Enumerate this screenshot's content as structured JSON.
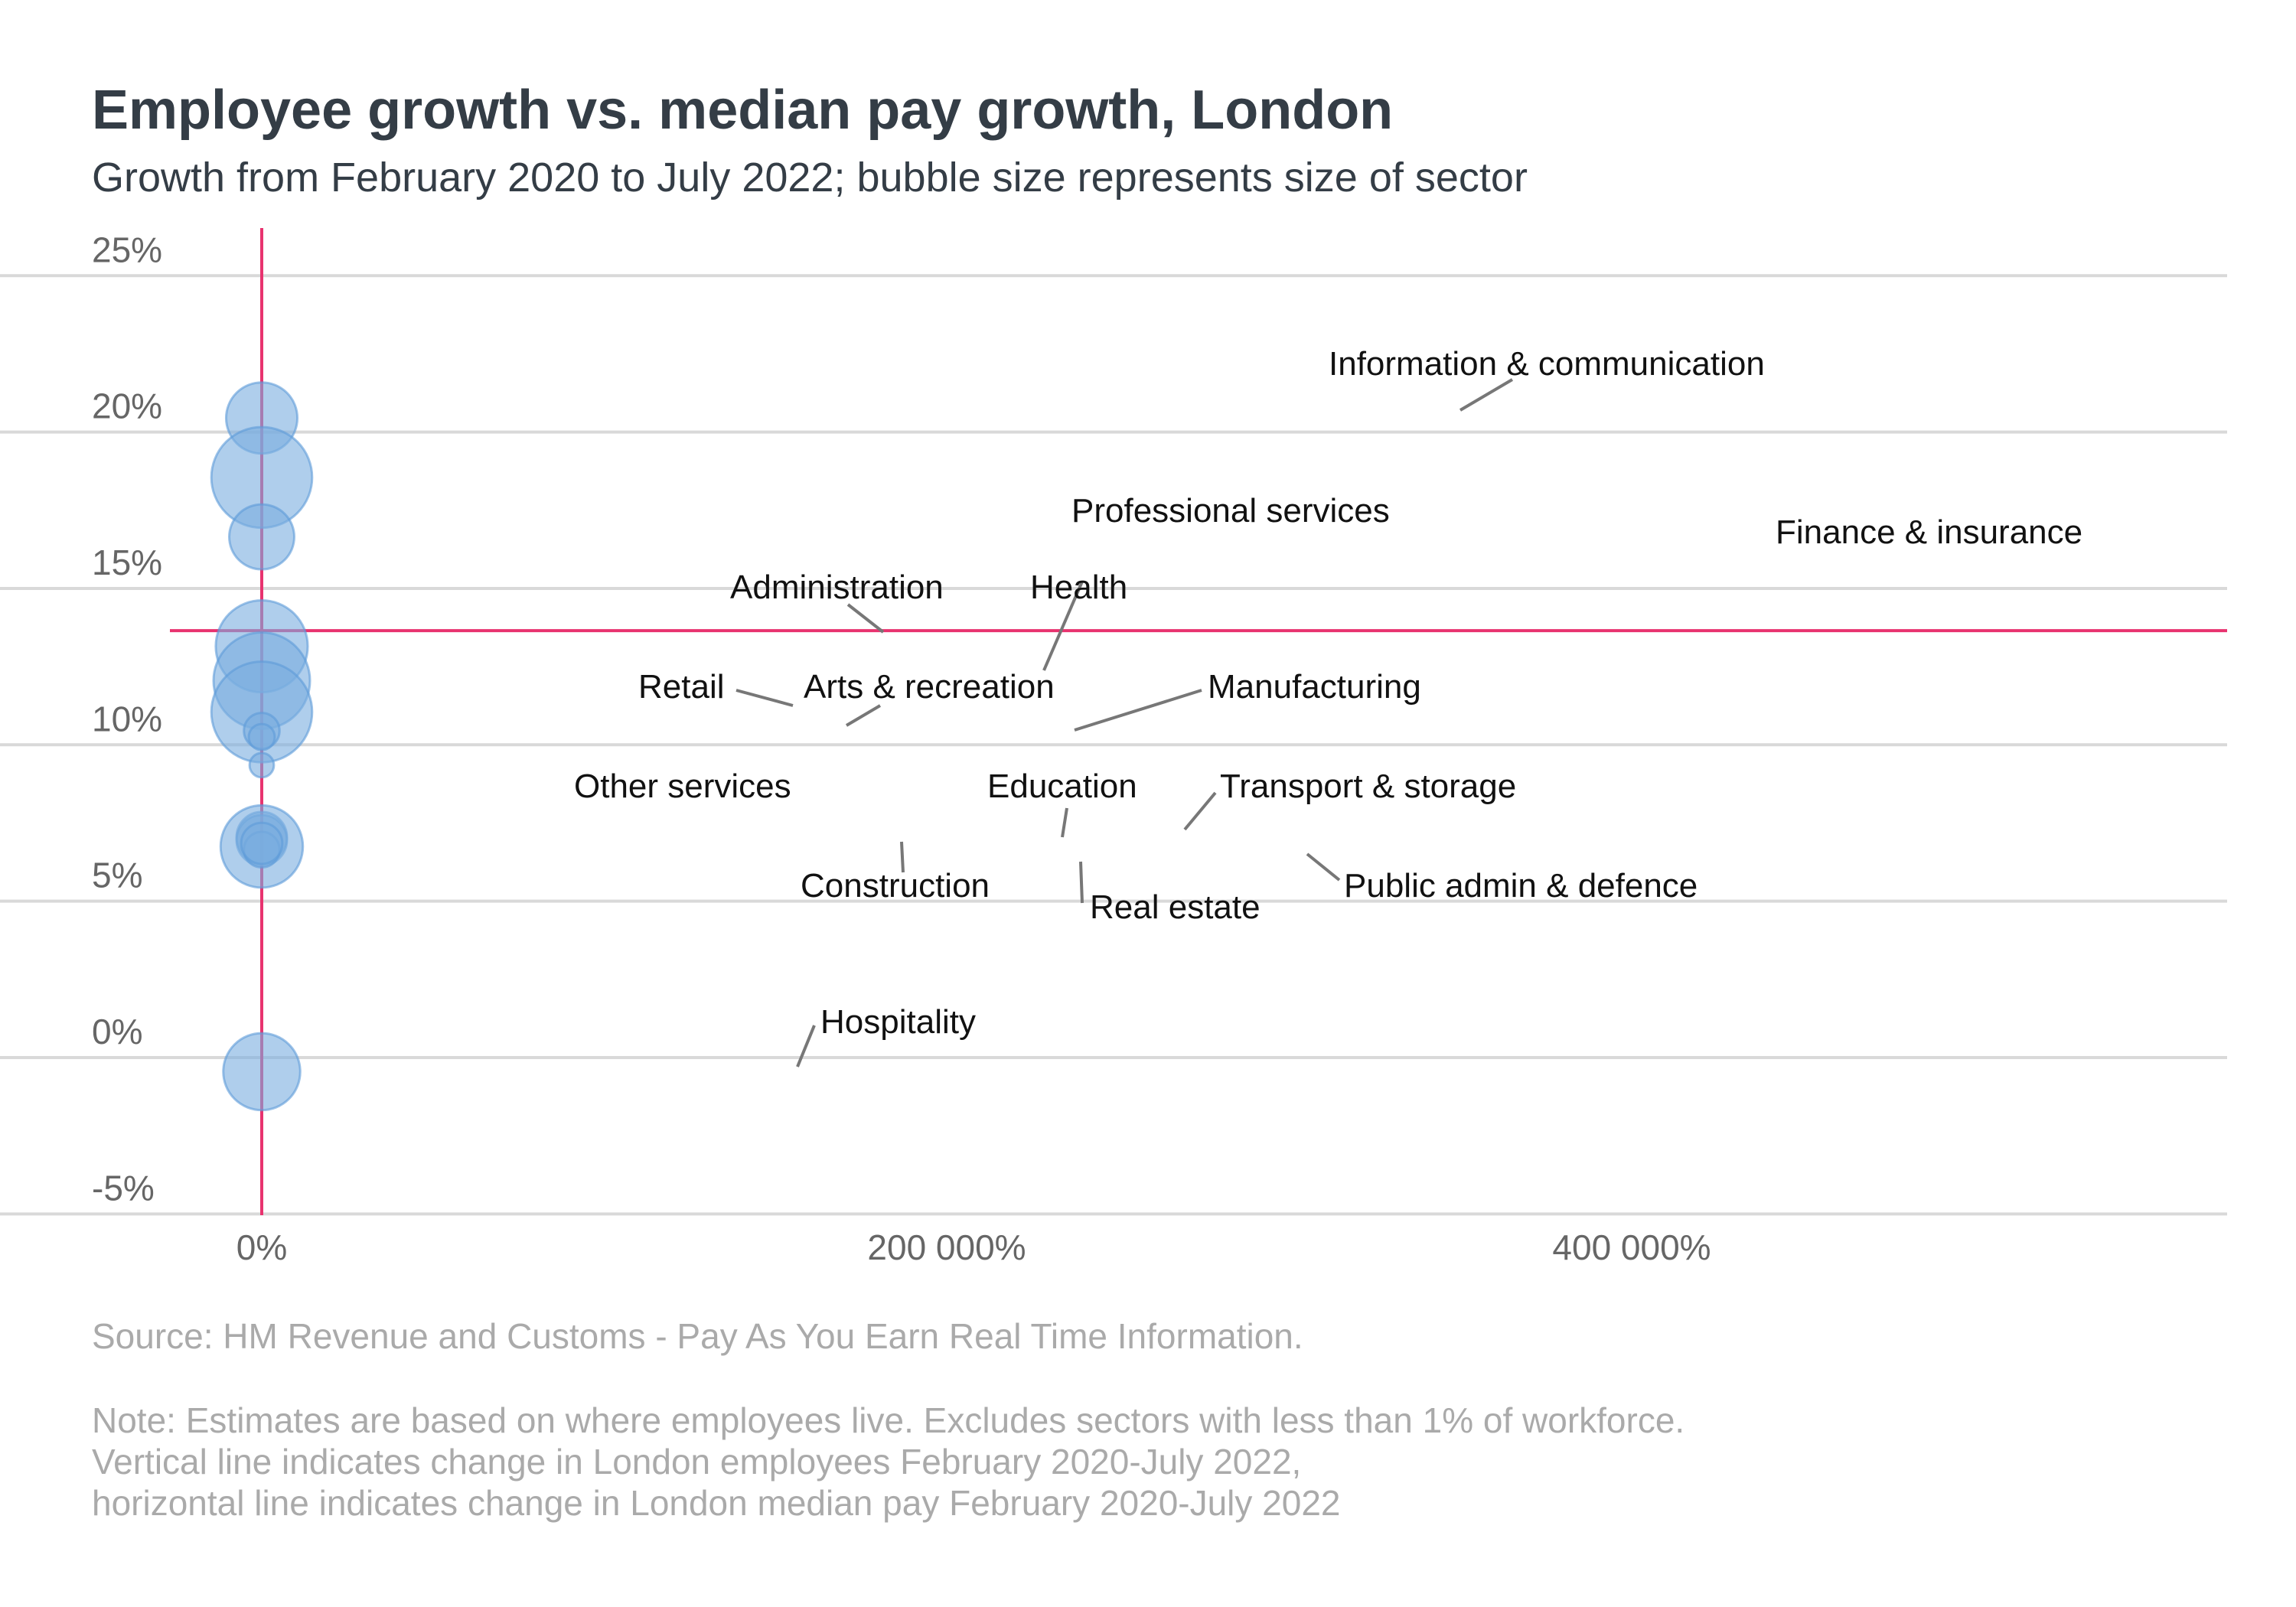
{
  "chart_data": {
    "type": "scatter",
    "title": "Employee growth vs. median pay growth, London",
    "subtitle": "Growth from February 2020 to July 2022; bubble size represents size of sector",
    "xlabel": "",
    "ylabel": "",
    "x_ticks": [
      {
        "value": 0,
        "label": "0%"
      },
      {
        "value": 200000,
        "label": "200 000%"
      },
      {
        "value": 400000,
        "label": "400 000%"
      }
    ],
    "y_ticks": [
      {
        "value": -5,
        "label": "-5%"
      },
      {
        "value": 0,
        "label": "0%"
      },
      {
        "value": 5,
        "label": "5%"
      },
      {
        "value": 10,
        "label": "10%"
      },
      {
        "value": 15,
        "label": "15%"
      },
      {
        "value": 20,
        "label": "20%"
      },
      {
        "value": 25,
        "label": "25%"
      }
    ],
    "xlim": [
      -50000,
      570000
    ],
    "ylim": [
      -5,
      25
    ],
    "grid": "horizontal",
    "vertical_reference": 0,
    "horizontal_reference": 13.6,
    "bubble_color": "#7aaee0",
    "reference_line_color": "#e8336f",
    "points": [
      {
        "label": "Information & communication",
        "x": 0,
        "y": 20.4,
        "size": 6
      },
      {
        "label": "Professional services",
        "x": 0,
        "y": 18.5,
        "size": 12
      },
      {
        "label": "Finance & insurance",
        "x": 0,
        "y": 16.6,
        "size": 5
      },
      {
        "label": "Administration",
        "x": 0,
        "y": 13.1,
        "size": 10
      },
      {
        "label": "Health",
        "x": 0,
        "y": 12.0,
        "size": 11
      },
      {
        "label": "Retail",
        "x": 0,
        "y": 11.0,
        "size": 12
      },
      {
        "label": "Arts & recreation",
        "x": 0,
        "y": 10.4,
        "size": 1.5
      },
      {
        "label": "Manufacturing",
        "x": 0,
        "y": 10.2,
        "size": 0.8
      },
      {
        "label": "Other services",
        "x": 0,
        "y": 9.3,
        "size": 0.7
      },
      {
        "label": "Education",
        "x": 0,
        "y": 7.0,
        "size": 3
      },
      {
        "label": "Transport & storage",
        "x": 0,
        "y": 6.9,
        "size": 3
      },
      {
        "label": "Construction",
        "x": 0,
        "y": 6.7,
        "size": 8
      },
      {
        "label": "Real estate",
        "x": 0,
        "y": 6.6,
        "size": 1.5
      },
      {
        "label": "Public admin & defence",
        "x": 0,
        "y": 6.8,
        "size": 2
      },
      {
        "label": "Hospitality",
        "x": 0,
        "y": -0.5,
        "size": 7
      }
    ]
  },
  "annotations": [
    {
      "text": "Source: HM Revenue and Customs - Pay As You Earn Real Time Information."
    },
    {
      "text": "Note: Estimates are based on where employees live. Excludes sectors with less than 1% of workforce."
    },
    {
      "text": "Vertical line indicates change in London employees February 2020-July 2022,"
    },
    {
      "text": "horizontal line indicates change in London median pay February 2020-July 2022"
    }
  ]
}
